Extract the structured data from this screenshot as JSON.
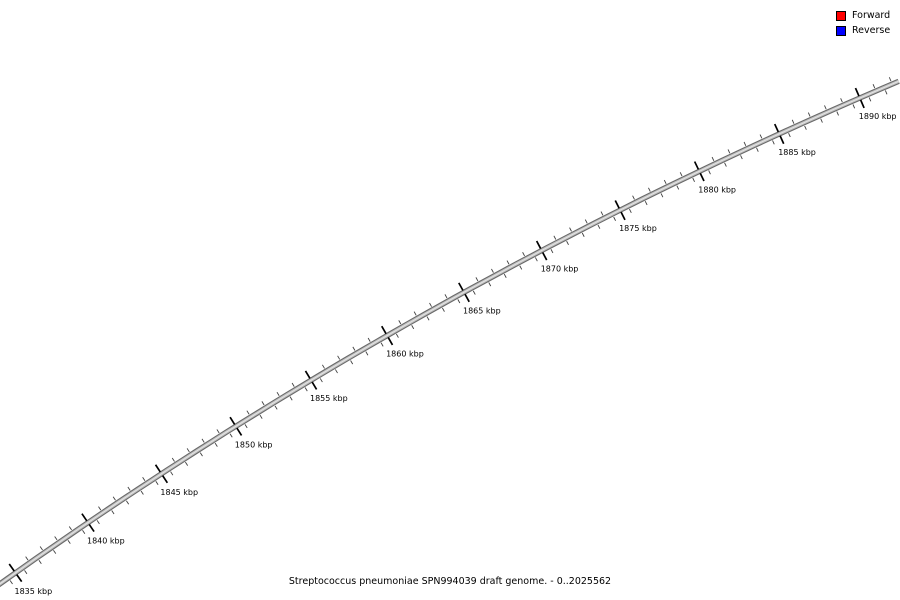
{
  "title": "Streptococcus pneumoniae SPN994039 draft genome. - 0..2025562",
  "legend": {
    "items": [
      {
        "label": "Forward",
        "color": "#ff0000"
      },
      {
        "label": "Reverse",
        "color": "#0000ff"
      }
    ]
  },
  "chart_data": {
    "type": "line",
    "subtype": "circular-genome-scale-arc-segment",
    "title": "Streptococcus pneumoniae SPN994039 draft genome. - 0..2025562",
    "sequence_range_bp": [
      0,
      2025562
    ],
    "unit": "kbp",
    "visible_range_kbp": [
      1833.4,
      1893.2
    ],
    "major_tick_interval_kbp": 5,
    "minor_tick_interval_kbp": 0.5,
    "major_ticks": [
      {
        "kbp": 1835,
        "label": "1835 kbp"
      },
      {
        "kbp": 1840,
        "label": "1840 kbp"
      },
      {
        "kbp": 1845,
        "label": "1845 kbp"
      },
      {
        "kbp": 1850,
        "label": "1850 kbp"
      },
      {
        "kbp": 1855,
        "label": "1855 kbp"
      },
      {
        "kbp": 1860,
        "label": "1860 kbp"
      },
      {
        "kbp": 1865,
        "label": "1865 kbp"
      },
      {
        "kbp": 1870,
        "label": "1870 kbp"
      },
      {
        "kbp": 1875,
        "label": "1875 kbp"
      },
      {
        "kbp": 1880,
        "label": "1880 kbp"
      },
      {
        "kbp": 1885,
        "label": "1885 kbp"
      },
      {
        "kbp": 1890,
        "label": "1890 kbp"
      }
    ],
    "legend": [
      {
        "label": "Forward",
        "color": "#ff0000"
      },
      {
        "label": "Reverse",
        "color": "#0000ff"
      }
    ],
    "legend_position": "top-right",
    "grid": false,
    "colors": {
      "band_edge": "#696969",
      "band": "#bebebe",
      "band_highlight": "#e4e4e4",
      "major_tick": "#000000",
      "minor_tick": "#3f3f3f",
      "tick_label": "#000000"
    }
  }
}
